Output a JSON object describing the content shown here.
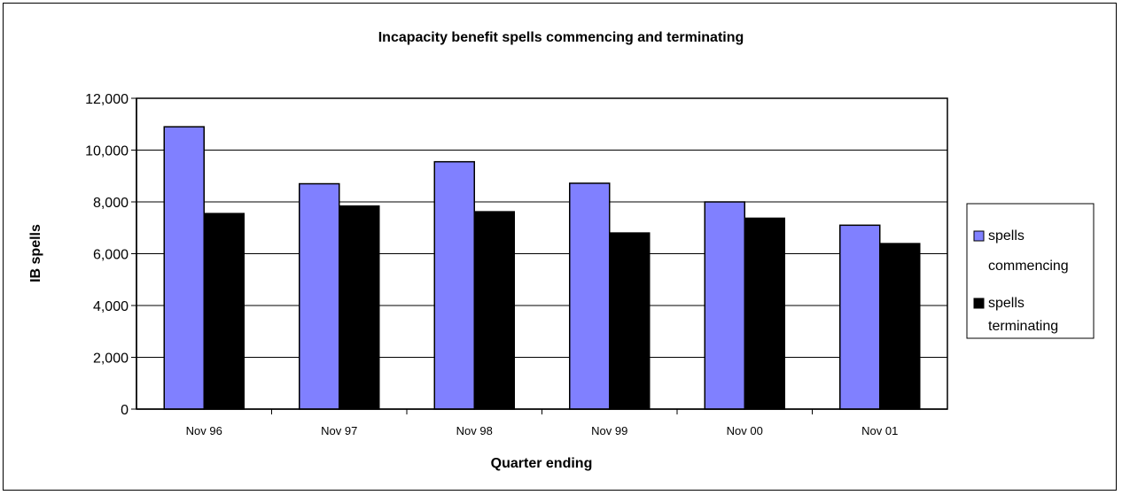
{
  "chart_data": {
    "type": "bar",
    "title": "Incapacity benefit spells commencing and terminating",
    "xlabel": "Quarter ending",
    "ylabel": "IB spells",
    "categories": [
      "Nov 96",
      "Nov 97",
      "Nov 98",
      "Nov 99",
      "Nov 00",
      "Nov 01"
    ],
    "series": [
      {
        "name_lines": [
          "spells",
          "commencing"
        ],
        "color": "#8080FF",
        "values": [
          10900,
          8700,
          9550,
          8720,
          8000,
          7100
        ]
      },
      {
        "name_lines": [
          "spells",
          "terminating"
        ],
        "color": "#000000",
        "values": [
          7550,
          7840,
          7620,
          6800,
          7370,
          6390
        ]
      }
    ],
    "ylim": [
      0,
      12000
    ],
    "yticks": [
      0,
      2000,
      4000,
      6000,
      8000,
      10000,
      12000
    ],
    "ytick_labels": [
      "0",
      "2,000",
      "4,000",
      "6,000",
      "8,000",
      "10,000",
      "12,000"
    ],
    "grid": true,
    "legend_position": "right"
  }
}
